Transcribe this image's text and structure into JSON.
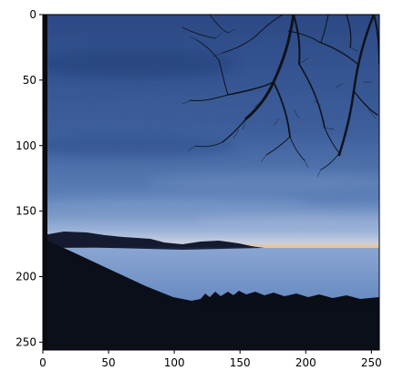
{
  "image": {
    "description_colors": {
      "sky_top": "#2d4a86",
      "sky_mid": "#5275ae",
      "sky_low": "#8fa9d3",
      "horizon_glow": "#f0c48a",
      "sea_of_clouds": "#5f82b9",
      "foreground": "#0b0f1a",
      "tree": "#0e121a"
    }
  },
  "axes": {
    "x_ticks": [
      "0",
      "50",
      "100",
      "150",
      "200",
      "250"
    ],
    "y_ticks": [
      "0",
      "50",
      "100",
      "150",
      "200",
      "250"
    ],
    "xlim": [
      0,
      256
    ],
    "ylim": [
      256,
      0
    ]
  }
}
